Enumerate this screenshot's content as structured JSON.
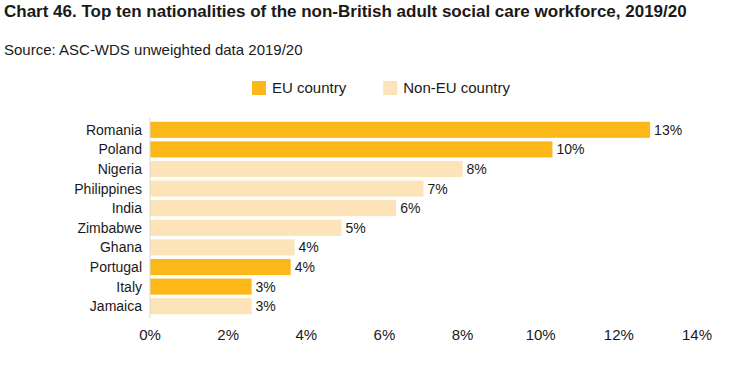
{
  "chart_data": {
    "type": "bar",
    "orientation": "horizontal",
    "title": "Chart 46. Top ten nationalities of the non-British adult social care workforce, 2019/20",
    "subtitle": "Source: ASC-WDS unweighted data 2019/20",
    "categories": [
      "Romania",
      "Poland",
      "Nigeria",
      "Philippines",
      "India",
      "Zimbabwe",
      "Ghana",
      "Portugal",
      "Italy",
      "Jamaica"
    ],
    "series": [
      {
        "name": "EU country",
        "color": "#fbb818",
        "values": [
          12.8,
          10.3,
          null,
          null,
          null,
          null,
          null,
          3.6,
          2.6,
          null
        ],
        "value_labels": [
          "13%",
          "10%",
          null,
          null,
          null,
          null,
          null,
          "4%",
          "3%",
          null
        ]
      },
      {
        "name": "Non-EU country",
        "color": "#fde3b8",
        "values": [
          null,
          null,
          8.0,
          7.0,
          6.3,
          4.9,
          3.7,
          null,
          null,
          2.6
        ],
        "value_labels": [
          null,
          null,
          "8%",
          "7%",
          "6%",
          "5%",
          "4%",
          null,
          null,
          "3%"
        ]
      }
    ],
    "xlim": [
      0,
      14
    ],
    "xticks": [
      {
        "value": 0,
        "label": "0%"
      },
      {
        "value": 2,
        "label": "2%"
      },
      {
        "value": 4,
        "label": "4%"
      },
      {
        "value": 6,
        "label": "6%"
      },
      {
        "value": 8,
        "label": "8%"
      },
      {
        "value": 10,
        "label": "10%"
      },
      {
        "value": 12,
        "label": "12%"
      },
      {
        "value": 14,
        "label": "14%"
      }
    ],
    "grid": false,
    "legend": "top",
    "data_labels": true
  }
}
